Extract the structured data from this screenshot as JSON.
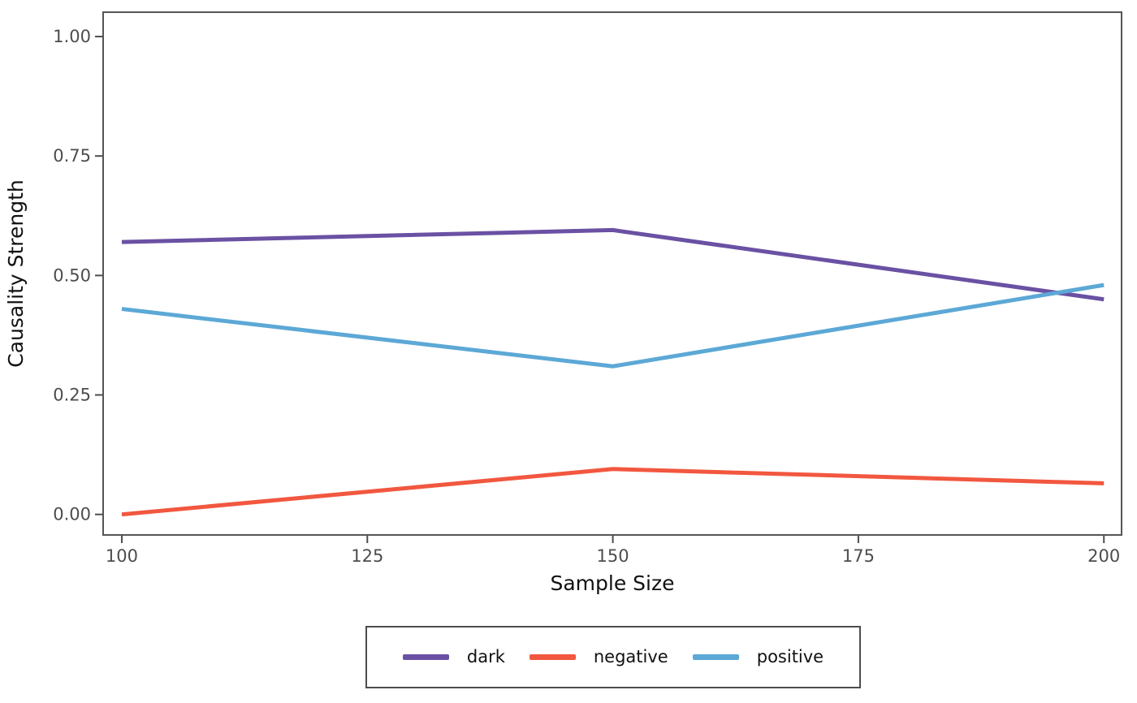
{
  "chart_data": {
    "type": "line",
    "title": "",
    "xlabel": "Sample Size",
    "ylabel": "Causality Strength",
    "x": [
      100,
      150,
      200
    ],
    "series": [
      {
        "name": "dark",
        "color": "#6A51A3",
        "values": [
          0.57,
          0.595,
          0.45
        ]
      },
      {
        "name": "negative",
        "color": "#F2573F",
        "values": [
          0.0,
          0.095,
          0.065
        ]
      },
      {
        "name": "positive",
        "color": "#5CA8D6",
        "values": [
          0.43,
          0.31,
          0.48
        ]
      }
    ],
    "x_ticks": [
      "100",
      "125",
      "150",
      "175",
      "200"
    ],
    "y_ticks": [
      "0.00",
      "0.25",
      "0.50",
      "0.75",
      "1.00"
    ],
    "xlim": [
      98.1,
      201.8
    ],
    "ylim": [
      -0.043,
      1.051
    ],
    "grid": false,
    "legend_position": "bottom",
    "line_width": 5,
    "axis_color": "#555555",
    "tick_color": "#4D4D4D",
    "label_color": "#111111"
  }
}
